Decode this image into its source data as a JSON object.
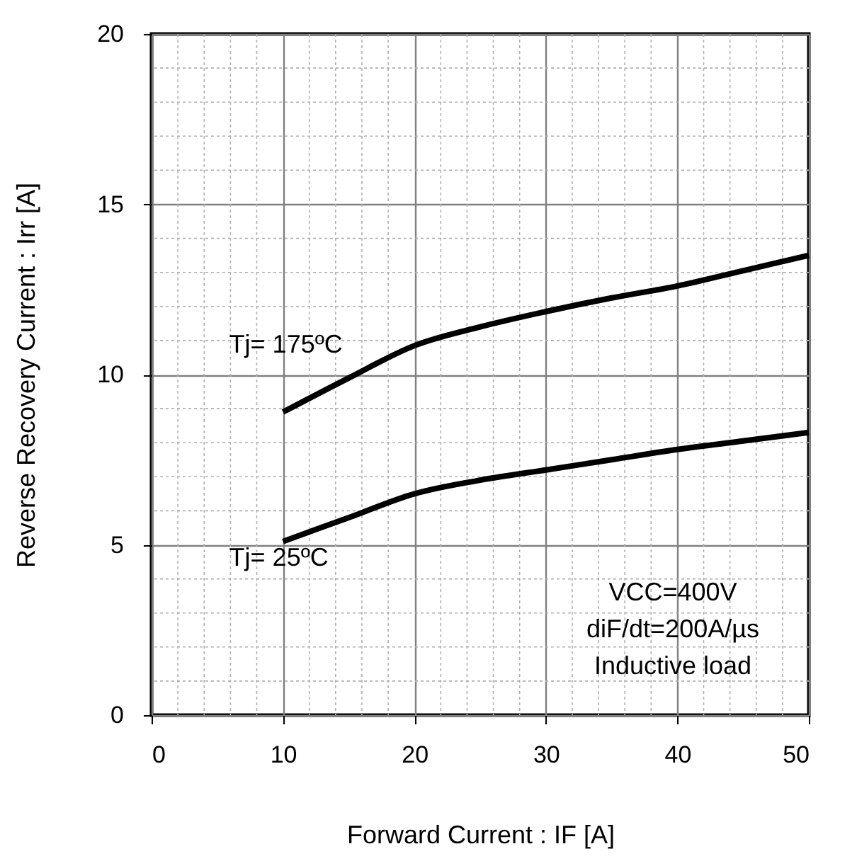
{
  "chart_data": {
    "type": "line",
    "xlabel": "Forward Current : IF [A]",
    "ylabel": "Reverse Recovery Current : Irr [A]",
    "x": [
      10,
      15,
      20,
      25,
      30,
      35,
      40,
      45,
      50
    ],
    "series": [
      {
        "name": "Tj= 175ºC",
        "color": "#000000",
        "values": [
          8.9,
          9.9,
          10.85,
          11.4,
          11.85,
          12.25,
          12.6,
          13.05,
          13.5
        ]
      },
      {
        "name": "Tj= 25ºC",
        "color": "#000000",
        "values": [
          5.1,
          5.8,
          6.5,
          6.9,
          7.2,
          7.5,
          7.8,
          8.05,
          8.3
        ]
      }
    ],
    "annotations": [
      "VCC=400V",
      "diF/dt=200A/µs",
      "Inductive load"
    ],
    "xlim": [
      0,
      50
    ],
    "xticks": [
      0,
      10,
      20,
      30,
      40,
      50
    ],
    "ylim": [
      0,
      20
    ],
    "yticks": [
      0,
      5,
      10,
      15,
      20
    ],
    "grid": true,
    "legend": false,
    "marker": "none",
    "line_style": "solid"
  }
}
